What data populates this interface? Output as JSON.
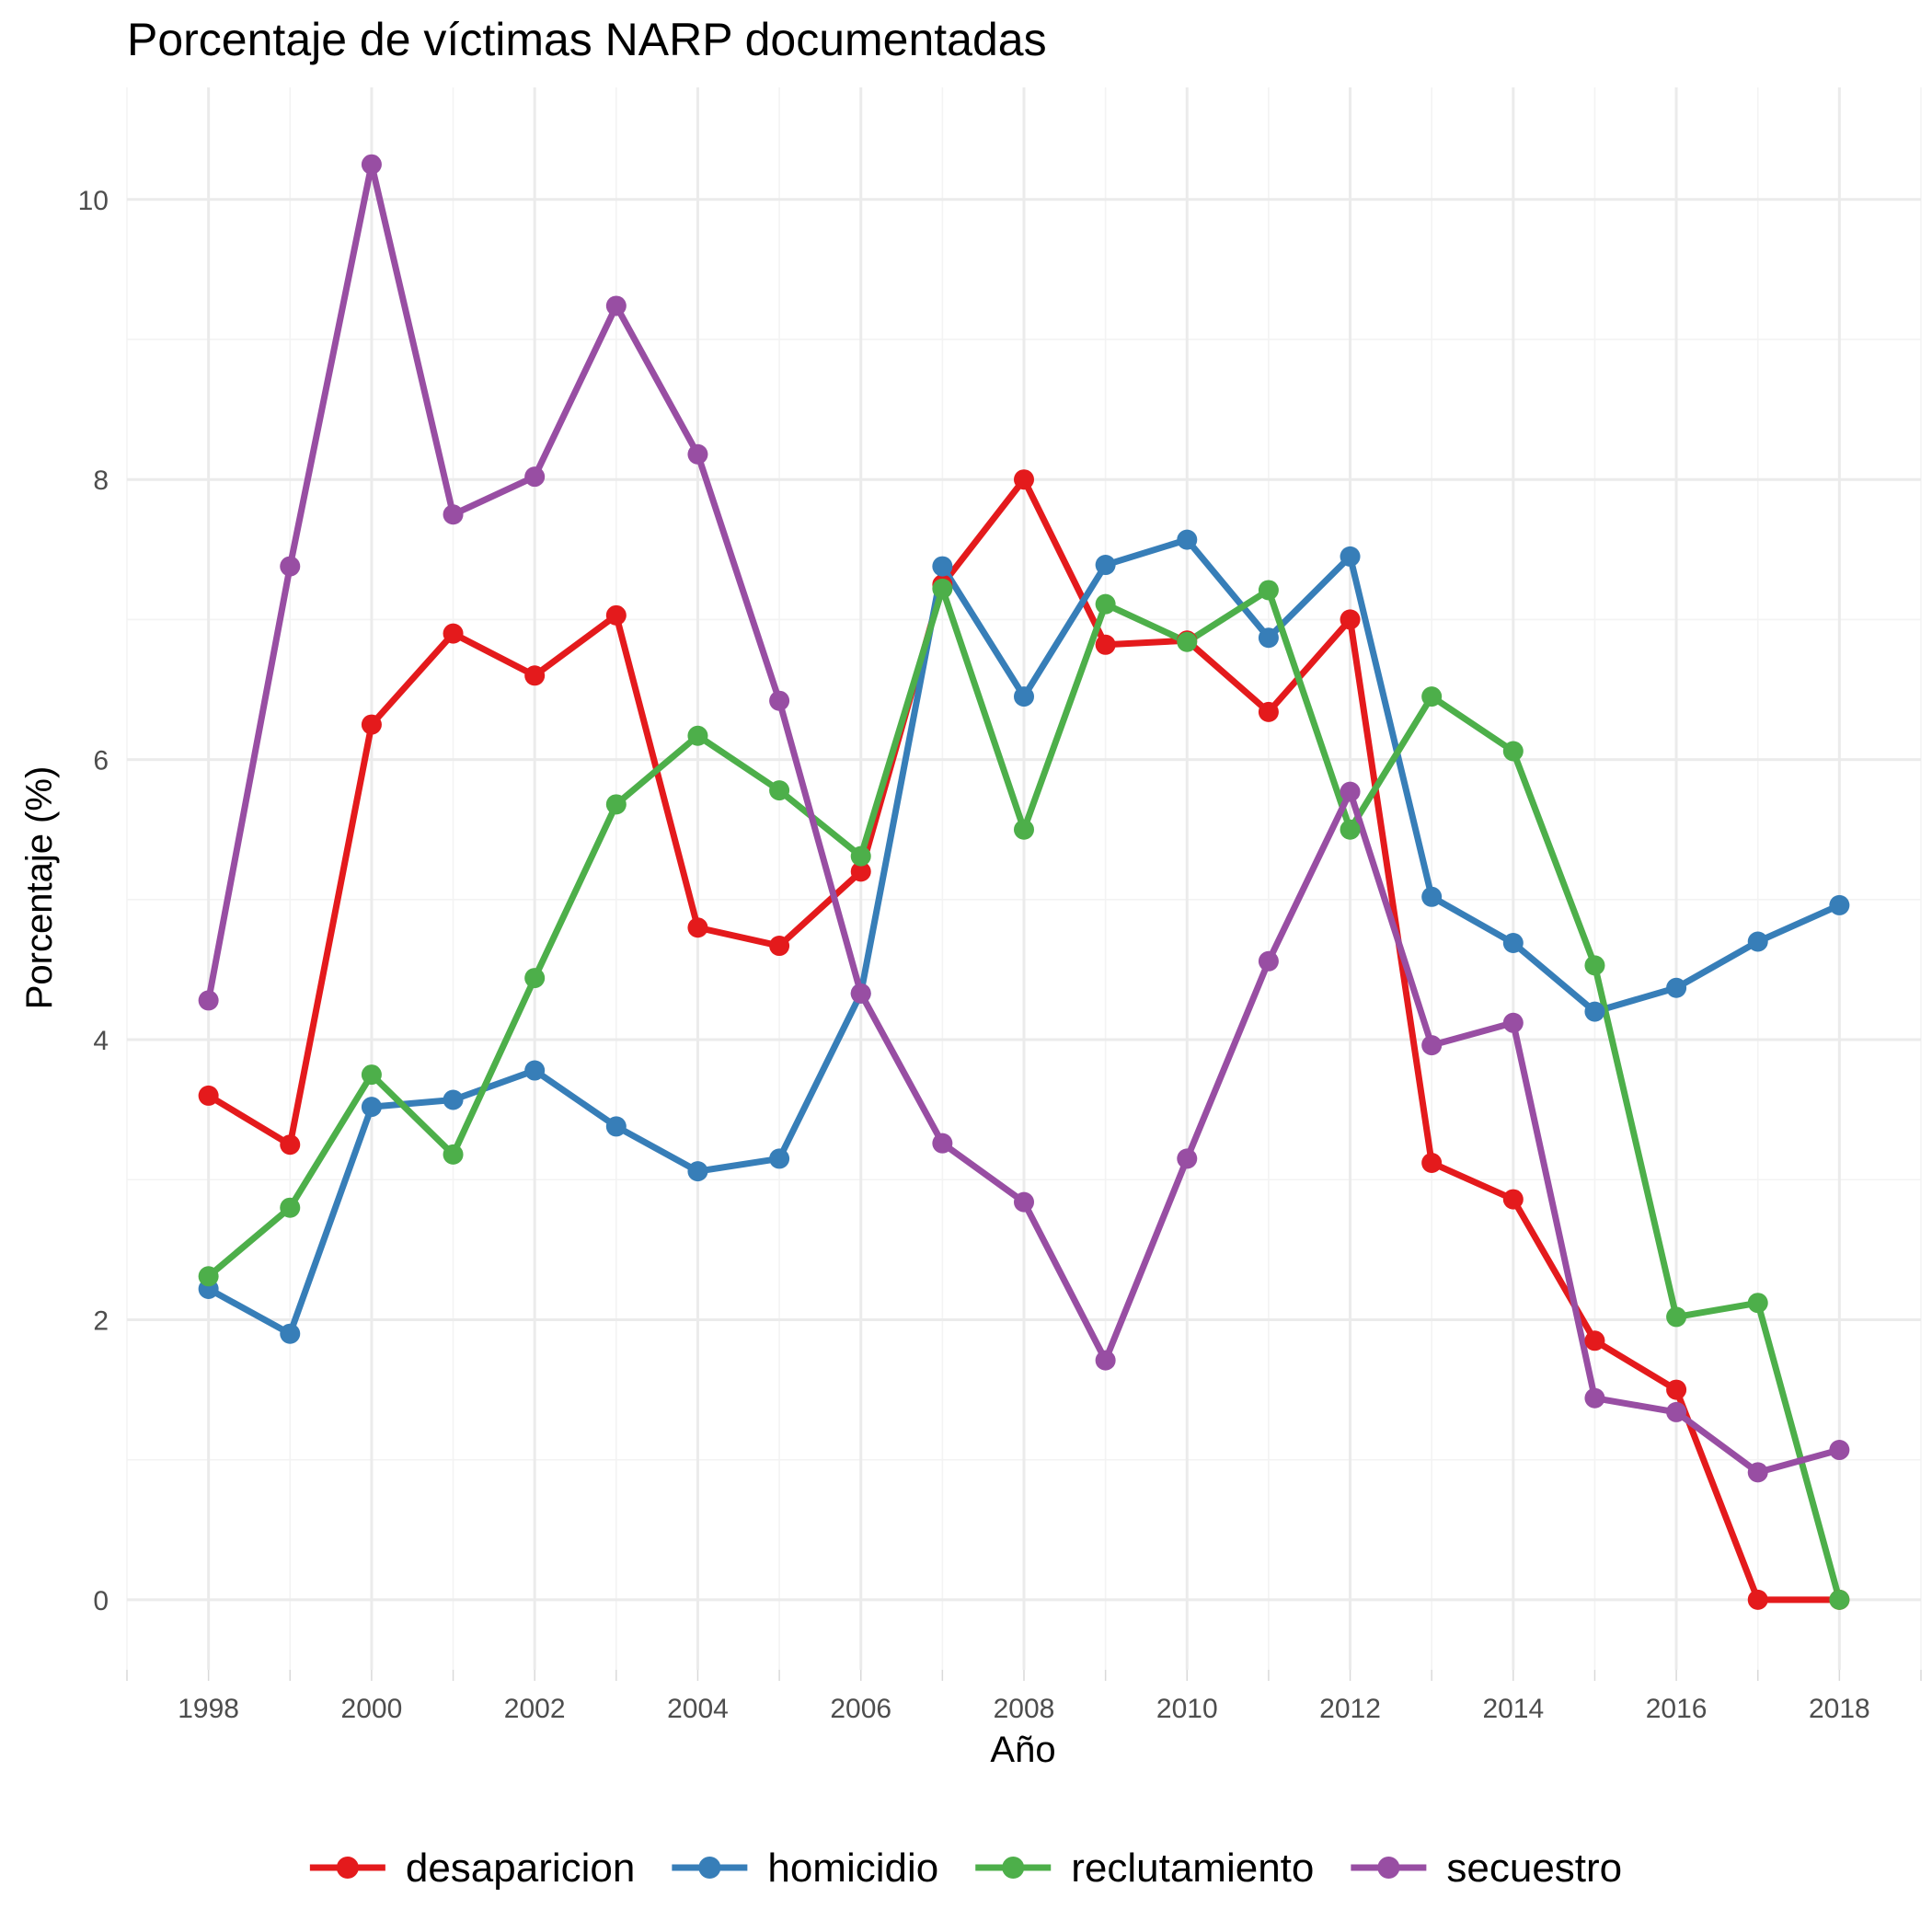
{
  "chart_data": {
    "type": "line",
    "title": "Porcentaje de víctimas NARP documentadas",
    "xlabel": "Año",
    "ylabel": "Porcentaje (%)",
    "x": [
      1998,
      1999,
      2000,
      2001,
      2002,
      2003,
      2004,
      2005,
      2006,
      2007,
      2008,
      2009,
      2010,
      2011,
      2012,
      2013,
      2014,
      2015,
      2016,
      2017,
      2018
    ],
    "xlim": [
      1997,
      2019
    ],
    "ylim": [
      -0.5,
      10.8
    ],
    "x_ticks": [
      1998,
      2000,
      2002,
      2004,
      2006,
      2008,
      2010,
      2012,
      2014,
      2016,
      2018
    ],
    "x_tick_labels": [
      "1998",
      "2000",
      "2002",
      "2004",
      "2006",
      "2008",
      "2010",
      "2012",
      "2014",
      "2016",
      "2018"
    ],
    "y_ticks": [
      0,
      2,
      4,
      6,
      8,
      10
    ],
    "y_tick_labels": [
      "0",
      "2",
      "4",
      "6",
      "8",
      "10"
    ],
    "grid": true,
    "legend_position": "bottom",
    "series": [
      {
        "name": "desaparicion",
        "color": "#e41a1c",
        "values": [
          3.6,
          3.25,
          6.25,
          6.9,
          6.6,
          7.03,
          4.8,
          4.67,
          5.2,
          7.25,
          8.0,
          6.82,
          6.85,
          6.34,
          7.0,
          3.12,
          2.86,
          1.85,
          1.5,
          0.0,
          0.0
        ]
      },
      {
        "name": "homicidio",
        "color": "#377eb8",
        "values": [
          2.22,
          1.9,
          3.52,
          3.57,
          3.78,
          3.38,
          3.06,
          3.15,
          4.33,
          7.38,
          6.45,
          7.39,
          7.57,
          6.87,
          7.45,
          5.02,
          4.69,
          4.2,
          4.37,
          4.7,
          4.96
        ]
      },
      {
        "name": "reclutamiento",
        "color": "#4daf4a",
        "values": [
          2.31,
          2.8,
          3.75,
          3.18,
          4.44,
          5.68,
          6.17,
          5.78,
          5.31,
          7.22,
          5.5,
          7.11,
          6.84,
          7.21,
          5.5,
          6.45,
          6.06,
          4.53,
          2.02,
          2.12,
          0.0
        ]
      },
      {
        "name": "secuestro",
        "color": "#984ea3",
        "values": [
          4.28,
          7.38,
          10.25,
          7.75,
          8.02,
          9.24,
          8.18,
          6.42,
          4.33,
          3.26,
          2.84,
          1.71,
          3.15,
          4.56,
          5.77,
          3.96,
          4.12,
          1.44,
          1.34,
          0.91,
          1.07
        ]
      }
    ]
  }
}
